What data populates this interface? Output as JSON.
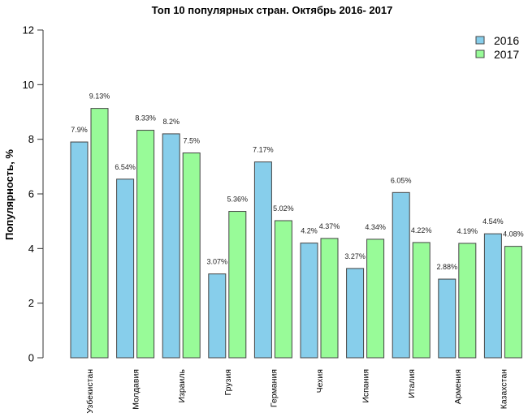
{
  "chart_data": {
    "type": "bar",
    "title": "Топ  10 популярных стран. Октябрь 2016- 2017",
    "xlabel": "",
    "ylabel": "Популярность, %",
    "ylim": [
      0,
      12
    ],
    "yticks": [
      0,
      2,
      4,
      6,
      8,
      10,
      12
    ],
    "grid": false,
    "legend_position": "top-right",
    "categories": [
      "Узбекистан",
      "Молдавия",
      "Израиль",
      "Грузия",
      "Германия",
      "Чехия",
      "Испания",
      "Италия",
      "Армения",
      "Казахстан"
    ],
    "series": [
      {
        "name": "2016",
        "color": "#87CEEB",
        "values": [
          7.9,
          6.54,
          8.2,
          3.07,
          7.17,
          4.2,
          3.27,
          6.05,
          2.88,
          4.54
        ],
        "labels": [
          "7.9%",
          "6.54%",
          "8.2%",
          "3.07%",
          "7.17%",
          "4.2%",
          "3.27%",
          "6.05%",
          "2.88%",
          "4.54%"
        ]
      },
      {
        "name": "2017",
        "color": "#98FB98",
        "values": [
          9.13,
          8.33,
          7.5,
          5.36,
          5.02,
          4.37,
          4.34,
          4.22,
          4.19,
          4.08
        ],
        "labels": [
          "9.13%",
          "8.33%",
          "7.5%",
          "5.36%",
          "5.02%",
          "4.37%",
          "4.34%",
          "4.22%",
          "4.19%",
          "4.08%"
        ]
      }
    ]
  }
}
